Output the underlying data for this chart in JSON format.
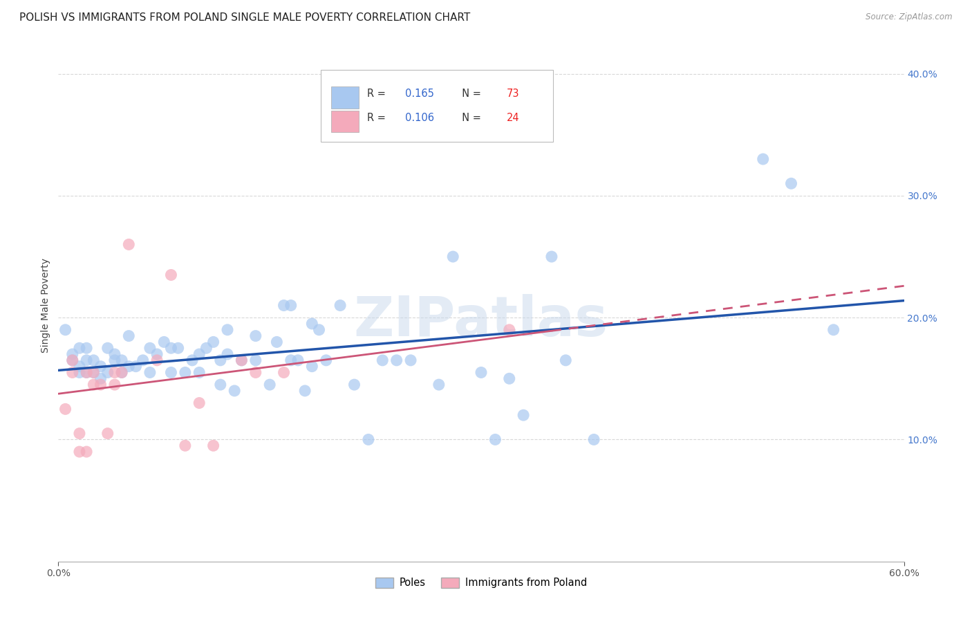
{
  "title": "POLISH VS IMMIGRANTS FROM POLAND SINGLE MALE POVERTY CORRELATION CHART",
  "source": "Source: ZipAtlas.com",
  "ylabel": "Single Male Poverty",
  "x_min": 0.0,
  "x_max": 0.6,
  "y_min": 0.0,
  "y_max": 0.42,
  "x_ticks": [
    0.0,
    0.6
  ],
  "x_tick_labels": [
    "0.0%",
    "60.0%"
  ],
  "y_ticks_right": [
    0.1,
    0.2,
    0.3,
    0.4
  ],
  "y_tick_labels_right": [
    "10.0%",
    "20.0%",
    "30.0%",
    "40.0%"
  ],
  "blue_R": "0.165",
  "blue_N": "73",
  "pink_R": "0.106",
  "pink_N": "24",
  "blue_color": "#A8C8F0",
  "pink_color": "#F4AABB",
  "blue_line_color": "#2255AA",
  "pink_line_color": "#CC5577",
  "watermark": "ZIPatlas",
  "poles_x": [
    0.005,
    0.01,
    0.01,
    0.015,
    0.015,
    0.015,
    0.02,
    0.02,
    0.02,
    0.025,
    0.025,
    0.03,
    0.03,
    0.035,
    0.035,
    0.04,
    0.04,
    0.045,
    0.045,
    0.05,
    0.05,
    0.055,
    0.06,
    0.065,
    0.065,
    0.07,
    0.075,
    0.08,
    0.08,
    0.085,
    0.09,
    0.095,
    0.1,
    0.1,
    0.105,
    0.11,
    0.115,
    0.115,
    0.12,
    0.12,
    0.125,
    0.13,
    0.14,
    0.14,
    0.15,
    0.155,
    0.16,
    0.165,
    0.165,
    0.17,
    0.175,
    0.18,
    0.18,
    0.185,
    0.19,
    0.2,
    0.21,
    0.22,
    0.23,
    0.24,
    0.25,
    0.27,
    0.28,
    0.3,
    0.31,
    0.32,
    0.33,
    0.35,
    0.36,
    0.38,
    0.5,
    0.52,
    0.55
  ],
  "poles_y": [
    0.19,
    0.165,
    0.17,
    0.155,
    0.16,
    0.175,
    0.155,
    0.165,
    0.175,
    0.155,
    0.165,
    0.15,
    0.16,
    0.155,
    0.175,
    0.165,
    0.17,
    0.155,
    0.165,
    0.16,
    0.185,
    0.16,
    0.165,
    0.155,
    0.175,
    0.17,
    0.18,
    0.155,
    0.175,
    0.175,
    0.155,
    0.165,
    0.155,
    0.17,
    0.175,
    0.18,
    0.145,
    0.165,
    0.19,
    0.17,
    0.14,
    0.165,
    0.165,
    0.185,
    0.145,
    0.18,
    0.21,
    0.165,
    0.21,
    0.165,
    0.14,
    0.16,
    0.195,
    0.19,
    0.165,
    0.21,
    0.145,
    0.1,
    0.165,
    0.165,
    0.165,
    0.145,
    0.25,
    0.155,
    0.1,
    0.15,
    0.12,
    0.25,
    0.165,
    0.1,
    0.33,
    0.31,
    0.19
  ],
  "immigrants_x": [
    0.005,
    0.01,
    0.01,
    0.015,
    0.015,
    0.02,
    0.02,
    0.025,
    0.025,
    0.03,
    0.035,
    0.04,
    0.04,
    0.045,
    0.05,
    0.07,
    0.08,
    0.09,
    0.1,
    0.11,
    0.13,
    0.14,
    0.16,
    0.32
  ],
  "immigrants_y": [
    0.125,
    0.165,
    0.155,
    0.105,
    0.09,
    0.09,
    0.155,
    0.155,
    0.145,
    0.145,
    0.105,
    0.145,
    0.155,
    0.155,
    0.26,
    0.165,
    0.235,
    0.095,
    0.13,
    0.095,
    0.165,
    0.155,
    0.155,
    0.19
  ],
  "legend_labels": [
    "Poles",
    "Immigrants from Poland"
  ],
  "grid_color": "#D8D8D8",
  "background_color": "#FFFFFF",
  "title_fontsize": 11,
  "axis_label_fontsize": 10,
  "tick_fontsize": 10,
  "legend_R_color": "#3366CC",
  "legend_N_color": "#EE2222"
}
